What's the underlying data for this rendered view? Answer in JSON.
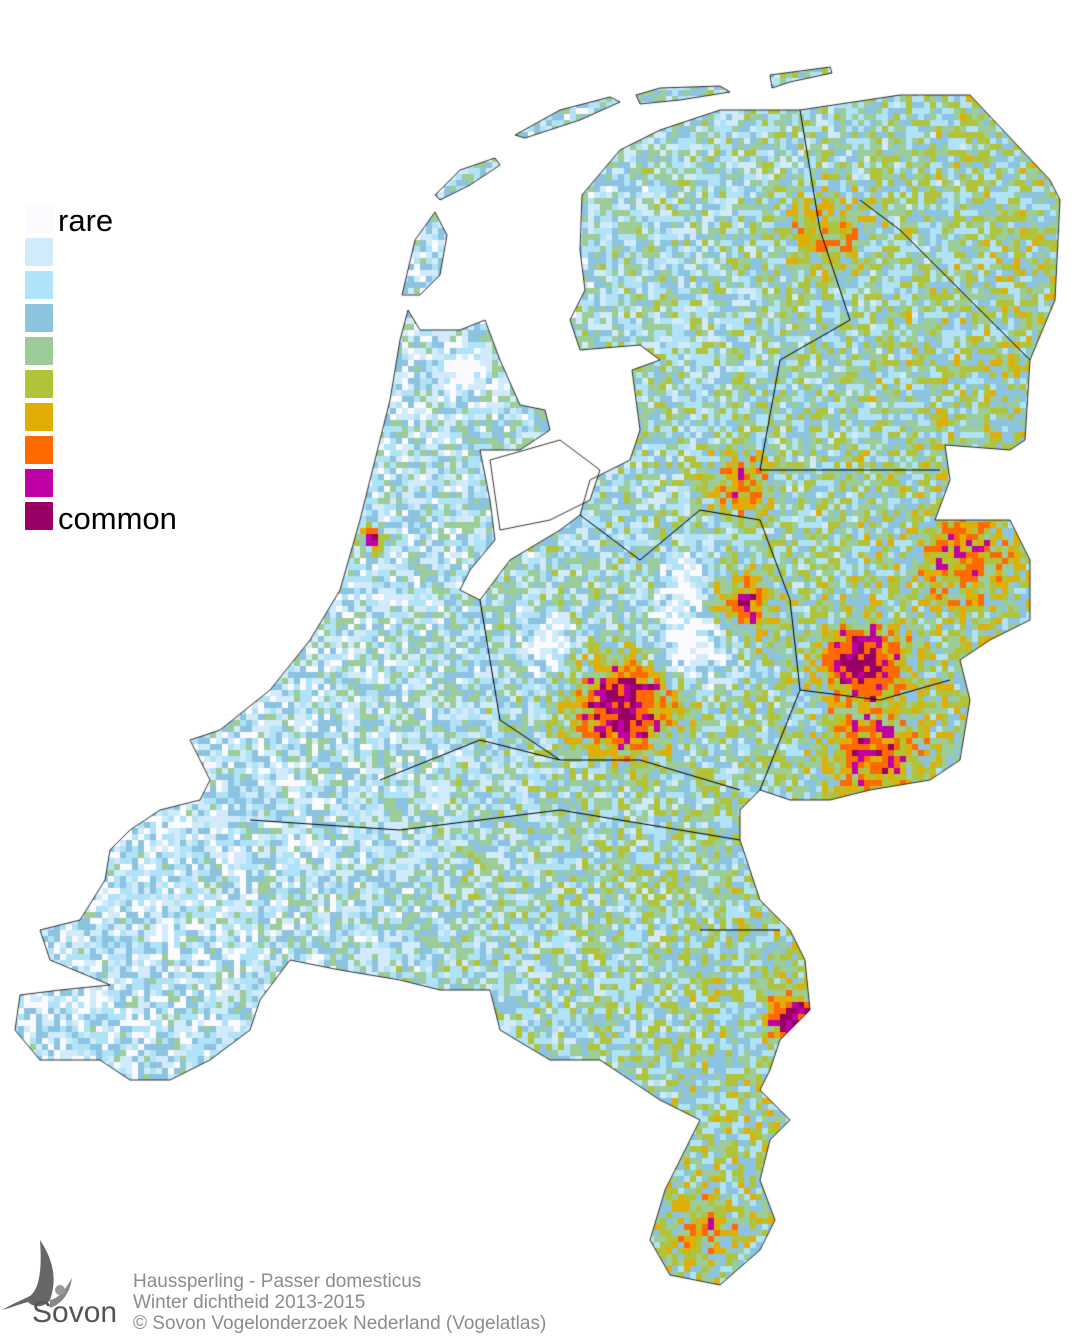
{
  "legend": {
    "top_label": "rare",
    "bottom_label": "common",
    "colors": [
      "#fbfbff",
      "#d2ebfa",
      "#b0e2f8",
      "#8bc3e0",
      "#9ccc98",
      "#b1c338",
      "#e0ae05",
      "#ff6a00",
      "#bf00a5",
      "#990066"
    ]
  },
  "footer": {
    "line1": "Haussperling - Passer domesticus",
    "line2": "Winter dichtheid 2013-2015",
    "line3": "© Sovon Vogelonderzoek Nederland (Vogelatlas)"
  },
  "logo": {
    "text": "Sovon",
    "icon": "swallow-icon"
  }
}
